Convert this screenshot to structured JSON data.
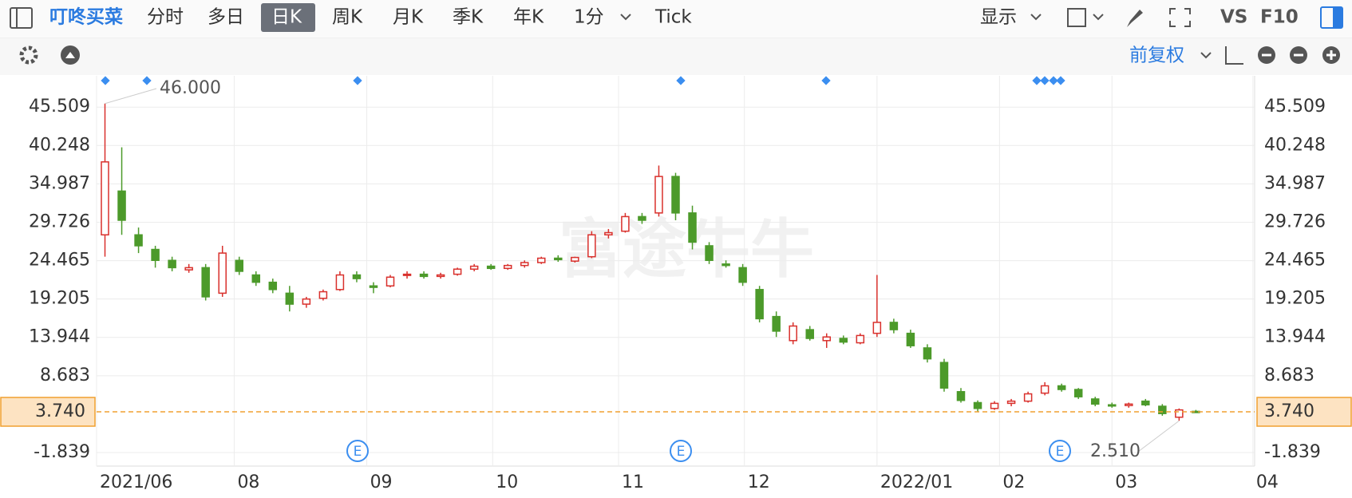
{
  "toolbar": {
    "stock": "叮咚买菜",
    "tabs": [
      "分时",
      "多日",
      "日K",
      "周K",
      "月K",
      "季K",
      "年K",
      "1分",
      "Tick"
    ],
    "display": "显示",
    "vs": "VS",
    "f10": "F10",
    "adjust": "前复权"
  },
  "chart_data": {
    "type": "candlestick",
    "watermark": "富途牛牛",
    "open": [
      28,
      34,
      28,
      26,
      24.5,
      23.2,
      23.5,
      20,
      24.5,
      22.5,
      21.5,
      20,
      18.5,
      19.3,
      20.5,
      22.5,
      21,
      21,
      22.5,
      22.6,
      22.3,
      22.6,
      23.3,
      23.7,
      23.4,
      23.8,
      24.2,
      24.8,
      24.4,
      25,
      28,
      28.5,
      30.5,
      31,
      36,
      31,
      26.5,
      24,
      23.5,
      20.5,
      16.8,
      13.5,
      15,
      13.5,
      13.8,
      13.2,
      14.5,
      16,
      14.5,
      12.5,
      10.5,
      6.5,
      5,
      4.2,
      4.9,
      5.2,
      6.3,
      7.3,
      6.8,
      5.5,
      4.7,
      4.6,
      5.2,
      4.5,
      3.0,
      3.8
    ],
    "high": [
      46,
      40,
      29,
      26.5,
      25,
      24,
      24,
      26.5,
      25,
      23,
      22,
      21,
      19.5,
      20.5,
      23,
      23,
      21.5,
      22.5,
      23,
      23,
      22.8,
      23.5,
      24,
      24,
      24,
      24.5,
      25,
      25.2,
      25,
      28.5,
      28.8,
      31,
      31,
      37.5,
      36.5,
      32,
      27,
      24.5,
      24,
      21,
      17.5,
      16,
      15.5,
      14.5,
      14.2,
      14.5,
      22.5,
      16.5,
      15,
      13,
      11,
      7,
      5.3,
      5.2,
      5.5,
      6.5,
      7.8,
      7.6,
      7,
      5.8,
      5,
      5,
      5.5,
      4.8,
      4.2,
      4.0
    ],
    "low": [
      25,
      28,
      25.5,
      23.5,
      23,
      22.8,
      19,
      19.5,
      22.5,
      21,
      20,
      17.5,
      18,
      19,
      20.3,
      21.5,
      20,
      20.8,
      22,
      22,
      22,
      22.4,
      23,
      23.2,
      23.2,
      23.5,
      24,
      24.3,
      24.2,
      24.8,
      27.5,
      28.3,
      29.5,
      30.5,
      30,
      26,
      24,
      23.5,
      21,
      16,
      14,
      13,
      13.5,
      12.5,
      13,
      13,
      14,
      14.5,
      12.5,
      10.5,
      6.5,
      5,
      3.8,
      4,
      4.5,
      5,
      6,
      6.5,
      5.5,
      4.5,
      4.3,
      4.3,
      4.5,
      3.2,
      2.51,
      3.6
    ],
    "close": [
      38,
      30,
      26.5,
      24.5,
      23.5,
      23.5,
      19.5,
      25.5,
      23,
      21.5,
      20.5,
      18.5,
      19.2,
      20.2,
      22.5,
      22,
      20.8,
      22.2,
      22.6,
      22.3,
      22.5,
      23.3,
      23.7,
      23.4,
      23.8,
      24.2,
      24.8,
      24.6,
      24.9,
      28,
      28.3,
      30.5,
      30,
      36,
      31,
      27,
      24.5,
      23.8,
      21.5,
      16.5,
      14.8,
      15.5,
      13.8,
      14,
      13.3,
      14.2,
      16,
      15,
      12.8,
      11,
      7,
      5.3,
      4.2,
      4.9,
      5.2,
      6.2,
      7.3,
      6.8,
      5.8,
      4.8,
      4.6,
      4.8,
      4.7,
      3.5,
      4.0,
      3.74
    ],
    "xlim": [
      -0.5,
      68.5
    ],
    "xticks": [
      {
        "value": -0.5,
        "label": "2021/06"
      },
      {
        "value": 7.7,
        "label": "08"
      },
      {
        "value": 15.6,
        "label": "09"
      },
      {
        "value": 23.1,
        "label": "10"
      },
      {
        "value": 30.6,
        "label": "11"
      },
      {
        "value": 38.1,
        "label": "12"
      },
      {
        "value": 46.0,
        "label": "2022/01"
      },
      {
        "value": 53.3,
        "label": "02"
      },
      {
        "value": 60.0,
        "label": "03"
      },
      {
        "value": 68.4,
        "label": "04"
      }
    ],
    "ylim": [
      -3.7,
      49.8
    ],
    "yticks": [
      -1.839,
      8.683,
      13.944,
      19.205,
      24.465,
      29.726,
      34.987,
      40.248,
      45.509
    ],
    "current_price": {
      "value": 3.74,
      "label": "3.740"
    },
    "max_label": {
      "value": 46,
      "label": "46.000"
    },
    "min_label": {
      "value": 2.51,
      "label": "2.510"
    },
    "events": [
      "E",
      "E",
      "E"
    ],
    "colors": {
      "up": "#d9302c",
      "down": "#4c9a2a"
    },
    "grid": true
  }
}
